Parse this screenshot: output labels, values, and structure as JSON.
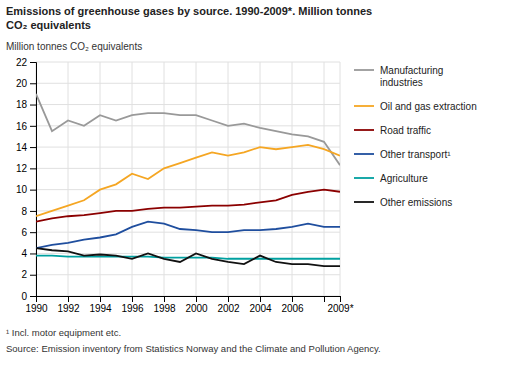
{
  "chart_data": {
    "type": "line",
    "title": "Emissions of greenhouse gases by source. 1990-2009*. Million tonnes\nCO₂ equivalents",
    "y_label": "Million tonnes CO₂ equivalents",
    "annotations": [
      "¹ Incl. motor equipment etc.",
      "Source: Emission inventory from Statistics Norway and the Climate and Pollution Agency."
    ],
    "x": [
      1990,
      1991,
      1992,
      1993,
      1994,
      1995,
      1996,
      1997,
      1998,
      1999,
      2000,
      2001,
      2002,
      2003,
      2004,
      2005,
      2006,
      2007,
      2008,
      2009
    ],
    "xlim": [
      1990,
      2009
    ],
    "xticks": [
      1990,
      1992,
      1994,
      1996,
      1998,
      2000,
      2002,
      2004,
      2006,
      {
        "value": 2008,
        "label": null
      },
      {
        "value": 2009,
        "label": "2009*"
      }
    ],
    "ylim": [
      0,
      22
    ],
    "yticks": [
      0,
      2,
      4,
      6,
      8,
      10,
      12,
      14,
      16,
      18,
      20,
      22
    ],
    "grid": true,
    "legend": "right",
    "series": [
      {
        "name": "Manufacturing\nindustries",
        "color": "#999999",
        "values": [
          19.0,
          15.5,
          16.5,
          16.0,
          17.0,
          16.5,
          17.0,
          17.2,
          17.2,
          17.0,
          17.0,
          16.5,
          16.0,
          16.2,
          15.8,
          15.5,
          15.2,
          15.0,
          14.5,
          12.3
        ]
      },
      {
        "name": "Oil and gas extraction",
        "color": "#f5a623",
        "values": [
          7.5,
          8.0,
          8.5,
          9.0,
          10.0,
          10.5,
          11.5,
          11.0,
          12.0,
          12.5,
          13.0,
          13.5,
          13.2,
          13.5,
          14.0,
          13.8,
          14.0,
          14.2,
          13.8,
          13.2
        ]
      },
      {
        "name": "Road traffic",
        "color": "#8b0000",
        "values": [
          7.0,
          7.3,
          7.5,
          7.6,
          7.8,
          8.0,
          8.0,
          8.2,
          8.3,
          8.3,
          8.4,
          8.5,
          8.5,
          8.6,
          8.8,
          9.0,
          9.5,
          9.8,
          10.0,
          9.8
        ]
      },
      {
        "name": "Other transport¹",
        "color": "#1f4e9e",
        "values": [
          4.5,
          4.8,
          5.0,
          5.3,
          5.5,
          5.8,
          6.5,
          7.0,
          6.8,
          6.3,
          6.2,
          6.0,
          6.0,
          6.2,
          6.2,
          6.3,
          6.5,
          6.8,
          6.5,
          6.5
        ]
      },
      {
        "name": "Agriculture",
        "color": "#00a0a0",
        "values": [
          3.8,
          3.8,
          3.7,
          3.7,
          3.7,
          3.7,
          3.7,
          3.7,
          3.6,
          3.6,
          3.6,
          3.6,
          3.5,
          3.5,
          3.5,
          3.5,
          3.5,
          3.5,
          3.5,
          3.5
        ]
      },
      {
        "name": "Other emissions",
        "color": "#111111",
        "values": [
          4.5,
          4.3,
          4.2,
          3.8,
          3.9,
          3.8,
          3.5,
          4.0,
          3.5,
          3.2,
          4.0,
          3.5,
          3.2,
          3.0,
          3.8,
          3.2,
          3.0,
          3.0,
          2.8,
          2.8
        ]
      }
    ]
  }
}
